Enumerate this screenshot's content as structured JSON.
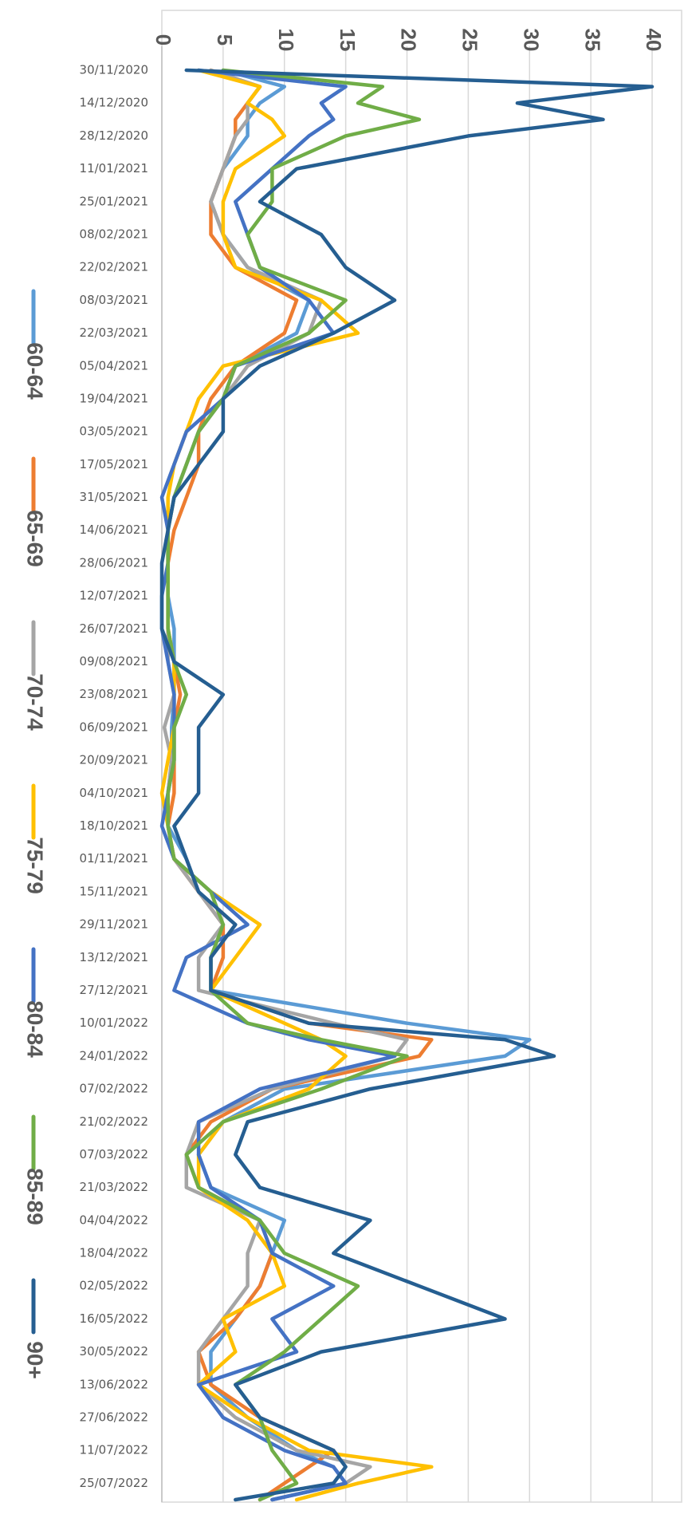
{
  "chart_data": {
    "type": "line",
    "orientation": "rotated-90-clockwise",
    "title": "",
    "xlabel": "",
    "ylabel": "",
    "ylim": [
      0,
      40
    ],
    "y_ticks": [
      "0",
      "5",
      "10",
      "15",
      "20",
      "25",
      "30",
      "35",
      "40"
    ],
    "x_tick_labels": [
      "30/11/2020",
      "14/12/2020",
      "28/12/2020",
      "11/01/2021",
      "25/01/2021",
      "08/02/2021",
      "22/02/2021",
      "08/03/2021",
      "22/03/2021",
      "05/04/2021",
      "19/04/2021",
      "03/05/2021",
      "17/05/2021",
      "31/05/2021",
      "14/06/2021",
      "28/06/2021",
      "12/07/2021",
      "26/07/2021",
      "09/08/2021",
      "23/08/2021",
      "06/09/2021",
      "20/09/2021",
      "04/10/2021",
      "18/10/2021",
      "01/11/2021",
      "15/11/2021",
      "29/11/2021",
      "13/12/2021",
      "27/12/2021",
      "10/01/2022",
      "24/01/2022",
      "07/02/2022",
      "21/02/2022",
      "07/03/2022",
      "21/03/2022",
      "04/04/2022",
      "18/04/2022",
      "02/05/2022",
      "16/05/2022",
      "30/05/2022",
      "13/06/2022",
      "27/06/2022",
      "11/07/2022",
      "25/07/2022"
    ],
    "grid": true,
    "legend_position": "left",
    "x_axis_side": "left",
    "y_axis_side": "top",
    "series": [
      {
        "name": "60-64",
        "color": "#5b9bd5",
        "x": [
          "30/11/2020",
          "07/12/2020",
          "14/12/2020",
          "21/12/2020",
          "28/12/2020",
          "11/01/2021",
          "25/01/2021",
          "08/02/2021",
          "22/02/2021",
          "08/03/2021",
          "22/03/2021",
          "05/04/2021",
          "19/04/2021",
          "03/05/2021",
          "17/05/2021",
          "31/05/2021",
          "14/06/2021",
          "28/06/2021",
          "12/07/2021",
          "26/07/2021",
          "09/08/2021",
          "23/08/2021",
          "06/09/2021",
          "20/09/2021",
          "04/10/2021",
          "18/10/2021",
          "01/11/2021",
          "15/11/2021",
          "29/11/2021",
          "13/12/2021",
          "27/12/2021",
          "10/01/2022",
          "17/01/2022",
          "24/01/2022",
          "07/02/2022",
          "21/02/2022",
          "07/03/2022",
          "21/03/2022",
          "04/04/2022",
          "18/04/2022",
          "02/05/2022",
          "16/05/2022",
          "30/05/2022",
          "13/06/2022",
          "27/06/2022",
          "11/07/2022",
          "18/07/2022",
          "25/07/2022",
          "01/08/2022"
        ],
        "values": [
          5,
          10,
          8,
          7,
          7,
          5,
          4,
          5,
          7,
          12,
          11,
          6,
          5,
          3,
          2,
          1,
          0.5,
          0.5,
          0.5,
          1,
          1,
          1,
          0.8,
          0.8,
          0.5,
          0.5,
          2,
          3,
          5,
          4,
          4,
          20,
          30,
          28,
          10,
          5,
          3,
          4,
          10,
          9,
          8,
          6,
          4,
          4,
          7,
          11,
          14,
          15,
          9
        ]
      },
      {
        "name": "65-69",
        "color": "#ed7d31",
        "x": [
          "30/11/2020",
          "07/12/2020",
          "14/12/2020",
          "21/12/2020",
          "28/12/2020",
          "11/01/2021",
          "25/01/2021",
          "08/02/2021",
          "22/02/2021",
          "08/03/2021",
          "22/03/2021",
          "05/04/2021",
          "19/04/2021",
          "03/05/2021",
          "17/05/2021",
          "31/05/2021",
          "14/06/2021",
          "28/06/2021",
          "12/07/2021",
          "26/07/2021",
          "09/08/2021",
          "23/08/2021",
          "06/09/2021",
          "20/09/2021",
          "04/10/2021",
          "18/10/2021",
          "01/11/2021",
          "15/11/2021",
          "29/11/2021",
          "13/12/2021",
          "27/12/2021",
          "10/01/2022",
          "17/01/2022",
          "24/01/2022",
          "07/02/2022",
          "21/02/2022",
          "07/03/2022",
          "21/03/2022",
          "04/04/2022",
          "18/04/2022",
          "02/05/2022",
          "16/05/2022",
          "30/05/2022",
          "13/06/2022",
          "27/06/2022",
          "11/07/2022",
          "18/07/2022",
          "25/07/2022",
          "01/08/2022"
        ],
        "values": [
          4,
          8,
          7,
          6,
          6,
          5,
          4,
          4,
          6,
          11,
          10,
          6,
          4,
          3,
          3,
          2,
          1,
          0.5,
          0.5,
          0.5,
          1,
          1.5,
          1,
          1,
          1,
          0.5,
          1,
          3,
          5,
          5,
          4,
          12,
          22,
          21,
          9,
          4,
          2,
          3,
          8,
          9,
          8,
          6,
          3,
          4,
          8,
          14,
          12,
          10,
          8
        ]
      },
      {
        "name": "70-74",
        "color": "#a5a5a5",
        "x": [
          "30/11/2020",
          "07/12/2020",
          "14/12/2020",
          "21/12/2020",
          "28/12/2020",
          "11/01/2021",
          "25/01/2021",
          "08/02/2021",
          "22/02/2021",
          "08/03/2021",
          "22/03/2021",
          "05/04/2021",
          "19/04/2021",
          "03/05/2021",
          "17/05/2021",
          "31/05/2021",
          "14/06/2021",
          "28/06/2021",
          "12/07/2021",
          "26/07/2021",
          "09/08/2021",
          "23/08/2021",
          "06/09/2021",
          "20/09/2021",
          "04/10/2021",
          "18/10/2021",
          "01/11/2021",
          "15/11/2021",
          "29/11/2021",
          "13/12/2021",
          "27/12/2021",
          "10/01/2022",
          "17/01/2022",
          "24/01/2022",
          "07/02/2022",
          "21/02/2022",
          "07/03/2022",
          "21/03/2022",
          "04/04/2022",
          "18/04/2022",
          "02/05/2022",
          "16/05/2022",
          "30/05/2022",
          "13/06/2022",
          "27/06/2022",
          "11/07/2022",
          "18/07/2022",
          "25/07/2022",
          "01/08/2022"
        ],
        "values": [
          4,
          8,
          7,
          7,
          6,
          5,
          4,
          5,
          7,
          13,
          12,
          7,
          5,
          3,
          2,
          1,
          0.5,
          0.5,
          0.5,
          0.5,
          0.5,
          1,
          0.2,
          0.8,
          0.5,
          0.5,
          1,
          3,
          5,
          3,
          3,
          14,
          20,
          19,
          9,
          3,
          2,
          2,
          8,
          7,
          7,
          5,
          3,
          3,
          6,
          11,
          17,
          15,
          9
        ]
      },
      {
        "name": "75-79",
        "color": "#ffc000",
        "x": [
          "30/11/2020",
          "07/12/2020",
          "14/12/2020",
          "21/12/2020",
          "28/12/2020",
          "11/01/2021",
          "25/01/2021",
          "08/02/2021",
          "22/02/2021",
          "08/03/2021",
          "22/03/2021",
          "05/04/2021",
          "19/04/2021",
          "03/05/2021",
          "17/05/2021",
          "31/05/2021",
          "14/06/2021",
          "28/06/2021",
          "12/07/2021",
          "26/07/2021",
          "09/08/2021",
          "23/08/2021",
          "06/09/2021",
          "20/09/2021",
          "04/10/2021",
          "18/10/2021",
          "01/11/2021",
          "15/11/2021",
          "29/11/2021",
          "13/12/2021",
          "27/12/2021",
          "10/01/2022",
          "17/01/2022",
          "24/01/2022",
          "07/02/2022",
          "21/02/2022",
          "07/03/2022",
          "21/03/2022",
          "04/04/2022",
          "18/04/2022",
          "02/05/2022",
          "16/05/2022",
          "30/05/2022",
          "13/06/2022",
          "27/06/2022",
          "11/07/2022",
          "18/07/2022",
          "25/07/2022",
          "01/08/2022"
        ],
        "values": [
          3,
          8,
          7,
          9,
          10,
          6,
          5,
          5,
          6,
          13,
          16,
          5,
          3,
          2,
          1,
          0.5,
          0.5,
          0.5,
          0.5,
          0.5,
          1,
          1,
          1,
          0.5,
          0,
          0.5,
          1,
          4,
          8,
          6,
          4,
          10,
          13,
          15,
          12,
          5,
          3,
          3,
          7,
          9,
          10,
          5,
          6,
          3,
          7,
          12,
          22,
          16,
          11
        ]
      },
      {
        "name": "80-84",
        "color": "#4472c4",
        "x": [
          "30/11/2020",
          "07/12/2020",
          "14/12/2020",
          "21/12/2020",
          "28/12/2020",
          "11/01/2021",
          "25/01/2021",
          "08/02/2021",
          "22/02/2021",
          "08/03/2021",
          "22/03/2021",
          "05/04/2021",
          "19/04/2021",
          "03/05/2021",
          "17/05/2021",
          "31/05/2021",
          "14/06/2021",
          "28/06/2021",
          "12/07/2021",
          "26/07/2021",
          "09/08/2021",
          "23/08/2021",
          "06/09/2021",
          "20/09/2021",
          "04/10/2021",
          "18/10/2021",
          "01/11/2021",
          "15/11/2021",
          "29/11/2021",
          "13/12/2021",
          "27/12/2021",
          "10/01/2022",
          "17/01/2022",
          "24/01/2022",
          "07/02/2022",
          "21/02/2022",
          "07/03/2022",
          "21/03/2022",
          "04/04/2022",
          "18/04/2022",
          "02/05/2022",
          "16/05/2022",
          "30/05/2022",
          "13/06/2022",
          "27/06/2022",
          "11/07/2022",
          "18/07/2022",
          "25/07/2022",
          "01/08/2022"
        ],
        "values": [
          3,
          15,
          13,
          14,
          12,
          9,
          6,
          7,
          8,
          12,
          14,
          6,
          5,
          2,
          1,
          0,
          0.5,
          0.5,
          0,
          0,
          0.5,
          1,
          1,
          1,
          0.5,
          0,
          1,
          4,
          7,
          2,
          1,
          7,
          12,
          19,
          8,
          3,
          3,
          4,
          8,
          9,
          14,
          9,
          11,
          3,
          5,
          10,
          14,
          15,
          9
        ]
      },
      {
        "name": "85-89",
        "color": "#70ad47",
        "x": [
          "30/11/2020",
          "07/12/2020",
          "14/12/2020",
          "21/12/2020",
          "28/12/2020",
          "11/01/2021",
          "25/01/2021",
          "08/02/2021",
          "22/02/2021",
          "08/03/2021",
          "22/03/2021",
          "05/04/2021",
          "19/04/2021",
          "03/05/2021",
          "17/05/2021",
          "31/05/2021",
          "14/06/2021",
          "28/06/2021",
          "12/07/2021",
          "26/07/2021",
          "09/08/2021",
          "23/08/2021",
          "06/09/2021",
          "20/09/2021",
          "04/10/2021",
          "18/10/2021",
          "01/11/2021",
          "15/11/2021",
          "29/11/2021",
          "13/12/2021",
          "27/12/2021",
          "10/01/2022",
          "17/01/2022",
          "24/01/2022",
          "07/02/2022",
          "21/02/2022",
          "07/03/2022",
          "21/03/2022",
          "04/04/2022",
          "18/04/2022",
          "02/05/2022",
          "16/05/2022",
          "30/05/2022",
          "13/06/2022",
          "27/06/2022",
          "11/07/2022",
          "18/07/2022",
          "25/07/2022",
          "01/08/2022"
        ],
        "values": [
          5,
          18,
          16,
          21,
          15,
          9,
          9,
          7,
          8,
          15,
          12,
          6,
          5,
          3,
          2,
          1,
          0.5,
          0.5,
          0.5,
          0.5,
          1,
          2,
          1,
          1,
          0.5,
          0.5,
          1,
          4,
          5,
          4,
          4,
          7,
          13,
          20,
          13,
          5,
          2,
          3,
          8,
          10,
          16,
          13,
          10,
          6,
          8,
          9,
          10,
          11,
          8
        ]
      },
      {
        "name": "90+",
        "color": "#255e91",
        "x": [
          "30/11/2020",
          "07/12/2020",
          "14/12/2020",
          "21/12/2020",
          "28/12/2020",
          "11/01/2021",
          "25/01/2021",
          "08/02/2021",
          "22/02/2021",
          "08/03/2021",
          "22/03/2021",
          "05/04/2021",
          "19/04/2021",
          "03/05/2021",
          "17/05/2021",
          "31/05/2021",
          "14/06/2021",
          "28/06/2021",
          "12/07/2021",
          "26/07/2021",
          "09/08/2021",
          "23/08/2021",
          "06/09/2021",
          "20/09/2021",
          "04/10/2021",
          "18/10/2021",
          "01/11/2021",
          "15/11/2021",
          "29/11/2021",
          "13/12/2021",
          "27/12/2021",
          "10/01/2022",
          "17/01/2022",
          "24/01/2022",
          "07/02/2022",
          "21/02/2022",
          "07/03/2022",
          "21/03/2022",
          "04/04/2022",
          "18/04/2022",
          "02/05/2022",
          "16/05/2022",
          "30/05/2022",
          "13/06/2022",
          "27/06/2022",
          "11/07/2022",
          "18/07/2022",
          "25/07/2022",
          "01/08/2022"
        ],
        "values": [
          2,
          40,
          29,
          36,
          25,
          11,
          8,
          13,
          15,
          19,
          14,
          8,
          5,
          5,
          3,
          1,
          0.5,
          0,
          0,
          0,
          1,
          5,
          3,
          3,
          3,
          1,
          2,
          3,
          6,
          4,
          4,
          12,
          28,
          32,
          17,
          7,
          6,
          8,
          17,
          14,
          21,
          28,
          13,
          6,
          8,
          14,
          15,
          14,
          6
        ]
      }
    ]
  }
}
